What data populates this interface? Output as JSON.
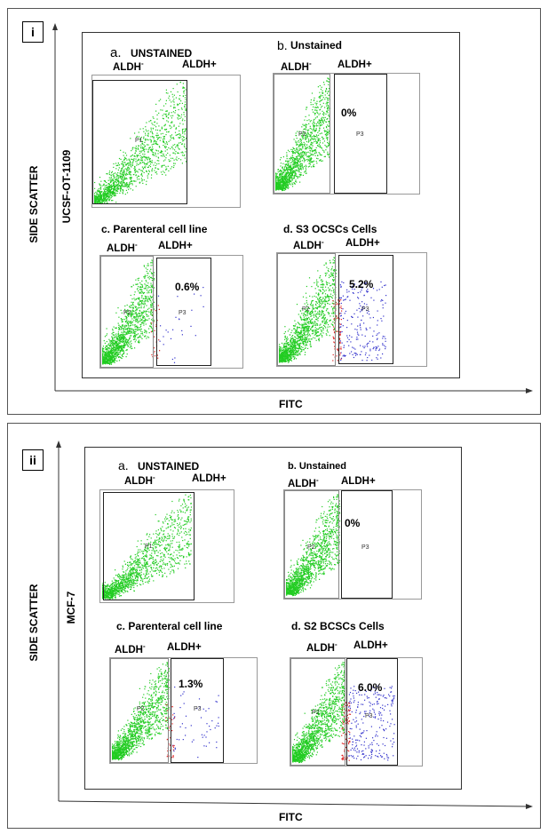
{
  "figure": [
    {
      "tag": "i",
      "ylabel_outer": "SIDE SCATTER",
      "ylabel_inner": "UCSF-OT-1109",
      "xlabel": "FITC",
      "panels": [
        {
          "letter": "a.",
          "title": "UNSTAINED",
          "left_label": "ALDH",
          "left_sup": "-",
          "right_label": "ALDH+",
          "pct": "",
          "p_left": "P1",
          "p_right": "",
          "blue": 0,
          "red": 0
        },
        {
          "letter": "b.",
          "title": "Unstained",
          "left_label": "ALDH",
          "left_sup": "-",
          "right_label": "ALDH+",
          "pct": "0%",
          "p_left": "P2",
          "p_right": "P3",
          "blue": 0,
          "red": 0
        },
        {
          "letter": "c.",
          "title": "Parenteral cell line",
          "left_label": "ALDH",
          "left_sup": "-",
          "right_label": "ALDH+",
          "pct": "0.6%",
          "p_left": "P2",
          "p_right": "P3",
          "blue": 0.006,
          "red": 0.01
        },
        {
          "letter": "d.",
          "title": "S3 OCSCs Cells",
          "left_label": "ALDH",
          "left_sup": "-",
          "right_label": "ALDH+",
          "pct": "5.2%",
          "p_left": "P2",
          "p_right": "P3",
          "blue": 0.052,
          "red": 0.03
        }
      ]
    },
    {
      "tag": "ii",
      "ylabel_outer": "SIDE SCATTER",
      "ylabel_inner": "MCF-7",
      "xlabel": "FITC",
      "panels": [
        {
          "letter": "a.",
          "title": "UNSTAINED",
          "left_label": "ALDH",
          "left_sup": "-",
          "right_label": "ALDH+",
          "pct": "",
          "p_left": "P1",
          "p_right": "",
          "blue": 0,
          "red": 0
        },
        {
          "letter": "b.",
          "title": "Unstained",
          "left_label": "ALDH",
          "left_sup": "-",
          "right_label": "ALDH+",
          "pct": "0%",
          "p_left": "P2",
          "p_right": "P3",
          "blue": 0,
          "red": 0
        },
        {
          "letter": "c.",
          "title": "Parenteral cell line",
          "left_label": "ALDH",
          "left_sup": "-",
          "right_label": "ALDH+",
          "pct": "1.3%",
          "p_left": "P2",
          "p_right": "P3",
          "blue": 0.013,
          "red": 0.015
        },
        {
          "letter": "d.",
          "title": "S2 BCSCs Cells",
          "left_label": "ALDH",
          "left_sup": "-",
          "right_label": "ALDH+",
          "pct": "6.0%",
          "p_left": "P2",
          "p_right": "P3",
          "blue": 0.06,
          "red": 0.03
        }
      ]
    }
  ],
  "colors": {
    "dots_green": "#22cc22",
    "dots_blue": "#3333cc",
    "dots_red": "#dd2222"
  }
}
